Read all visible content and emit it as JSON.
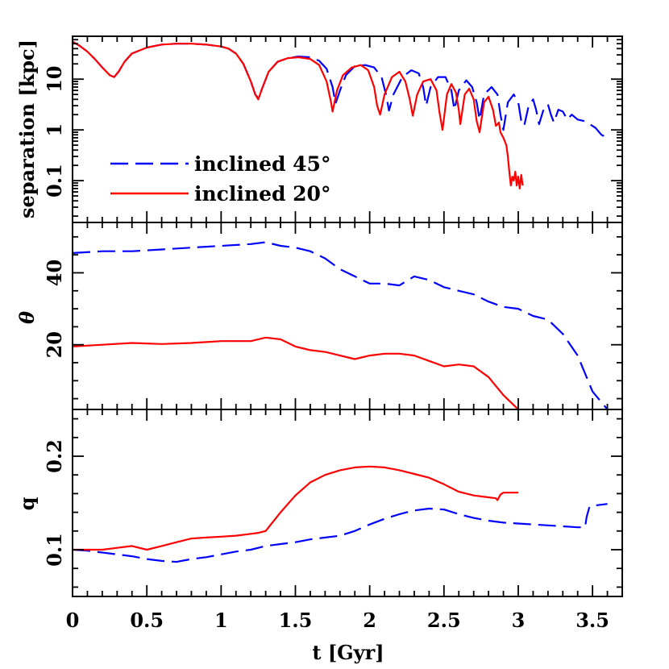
{
  "chart_data": [
    {
      "type": "line",
      "panel": "top",
      "ylabel": "separation [kpc]",
      "yscale": "log",
      "ylim": [
        0.015,
        70
      ],
      "xlim": [
        0,
        3.7
      ],
      "yticks": [
        0.1,
        1,
        10
      ],
      "ytick_labels": [
        "0.1",
        "1",
        "10"
      ],
      "legend_position": "lower-left",
      "series": [
        {
          "name": "inclined 45°",
          "color": "#0000ff",
          "dash": "dashed",
          "x": [
            0.0,
            0.05,
            0.1,
            0.15,
            0.2,
            0.25,
            0.28,
            0.31,
            0.35,
            0.4,
            0.5,
            0.6,
            0.7,
            0.8,
            0.9,
            1.0,
            1.05,
            1.1,
            1.15,
            1.2,
            1.23,
            1.25,
            1.28,
            1.32,
            1.38,
            1.45,
            1.52,
            1.6,
            1.66,
            1.71,
            1.75,
            1.77,
            1.8,
            1.84,
            1.9,
            1.97,
            2.03,
            2.08,
            2.11,
            2.13,
            2.16,
            2.22,
            2.28,
            2.33,
            2.36,
            2.38,
            2.41,
            2.46,
            2.51,
            2.55,
            2.57,
            2.6,
            2.65,
            2.69,
            2.72,
            2.74,
            2.77,
            2.82,
            2.86,
            2.88,
            2.9,
            2.93,
            2.97,
            3.0,
            3.02,
            3.04,
            3.07,
            3.1,
            3.12,
            3.14,
            3.17,
            3.2,
            3.22,
            3.24,
            3.27,
            3.3,
            3.33,
            3.36,
            3.4,
            3.44,
            3.48,
            3.52,
            3.56,
            3.6
          ],
          "y": [
            55,
            45,
            35,
            25,
            17,
            12,
            11,
            14,
            22,
            32,
            42,
            48,
            50,
            50,
            48,
            44,
            40,
            32,
            20,
            9,
            5,
            4.2,
            7,
            14,
            22,
            26,
            28,
            27,
            23,
            16,
            7,
            3.3,
            6,
            12,
            18,
            19,
            17,
            11,
            5,
            2.4,
            5,
            11,
            15,
            13,
            7,
            3,
            7,
            11,
            11,
            6,
            2.5,
            6,
            9.5,
            7,
            3.5,
            1.6,
            5,
            7,
            5,
            2,
            1,
            3.5,
            5,
            3.5,
            1.5,
            1.2,
            3,
            4,
            2.5,
            1.3,
            2.5,
            3.2,
            2,
            1.4,
            2.5,
            2.3,
            1.6,
            2,
            1.6,
            1.5,
            1.3,
            1.1,
            0.8,
            0.7
          ]
        },
        {
          "name": "inclined 20°",
          "color": "#ff0000",
          "dash": "solid",
          "x": [
            0.0,
            0.05,
            0.1,
            0.15,
            0.2,
            0.25,
            0.28,
            0.31,
            0.35,
            0.4,
            0.5,
            0.6,
            0.7,
            0.8,
            0.9,
            1.0,
            1.05,
            1.1,
            1.15,
            1.2,
            1.23,
            1.25,
            1.28,
            1.32,
            1.38,
            1.45,
            1.52,
            1.6,
            1.66,
            1.71,
            1.74,
            1.75,
            1.78,
            1.82,
            1.88,
            1.94,
            1.99,
            2.03,
            2.05,
            2.07,
            2.1,
            2.15,
            2.2,
            2.24,
            2.27,
            2.29,
            2.32,
            2.36,
            2.41,
            2.45,
            2.47,
            2.49,
            2.52,
            2.55,
            2.58,
            2.6,
            2.61,
            2.64,
            2.67,
            2.7,
            2.72,
            2.74,
            2.77,
            2.8,
            2.83,
            2.85,
            2.87,
            2.88,
            2.9,
            2.92,
            2.93,
            2.94,
            2.95,
            2.96,
            2.97,
            2.98,
            2.99,
            3.0,
            3.01,
            3.02,
            3.03
          ],
          "y": [
            55,
            45,
            35,
            25,
            17,
            12,
            11,
            14,
            22,
            32,
            42,
            48,
            50,
            50,
            48,
            44,
            40,
            32,
            20,
            9,
            5,
            4,
            7,
            14,
            22,
            26,
            27,
            25,
            19,
            9,
            3.5,
            2.3,
            6,
            12,
            17,
            19,
            15,
            7,
            3,
            2,
            5,
            11,
            14,
            9,
            4,
            1.9,
            5,
            9,
            10,
            6,
            2.2,
            1,
            5,
            8,
            5.5,
            2.5,
            1.3,
            5,
            6.5,
            4,
            1.5,
            0.9,
            3.5,
            4.5,
            2.5,
            1.2,
            1.4,
            0.9,
            0.7,
            0.5,
            0.3,
            0.15,
            0.08,
            0.12,
            0.1,
            0.15,
            0.08,
            0.12,
            0.07,
            0.13,
            0.08
          ]
        }
      ]
    },
    {
      "type": "line",
      "panel": "middle",
      "ylabel": "θ",
      "ylim": [
        2,
        54
      ],
      "xlim": [
        0,
        3.7
      ],
      "yticks": [
        20,
        40
      ],
      "ytick_labels": [
        "20",
        "40"
      ],
      "series": [
        {
          "color": "#0000ff",
          "dash": "dashed",
          "x": [
            0.0,
            0.2,
            0.4,
            0.6,
            0.8,
            1.0,
            1.2,
            1.3,
            1.4,
            1.5,
            1.6,
            1.7,
            1.8,
            1.9,
            2.0,
            2.1,
            2.2,
            2.3,
            2.4,
            2.5,
            2.6,
            2.7,
            2.8,
            2.9,
            3.0,
            3.1,
            3.2,
            3.3,
            3.4,
            3.5,
            3.6
          ],
          "y": [
            45.5,
            46,
            46,
            46.5,
            47,
            47.5,
            48,
            48.5,
            47.5,
            47,
            46,
            44,
            41,
            39,
            37,
            37,
            36.5,
            39,
            38,
            36,
            35,
            34,
            32,
            30.5,
            30,
            28,
            27,
            23,
            17,
            7,
            2
          ]
        },
        {
          "color": "#ff0000",
          "dash": "solid",
          "x": [
            0.0,
            0.2,
            0.4,
            0.6,
            0.8,
            1.0,
            1.2,
            1.3,
            1.4,
            1.5,
            1.6,
            1.7,
            1.8,
            1.9,
            2.0,
            2.1,
            2.2,
            2.3,
            2.4,
            2.5,
            2.6,
            2.7,
            2.8,
            2.9,
            3.0
          ],
          "y": [
            19.5,
            20,
            20.5,
            20.2,
            20.5,
            21,
            21,
            22,
            21.5,
            19.5,
            18.5,
            18,
            17,
            16,
            17,
            17.5,
            17.5,
            17,
            15.5,
            14,
            14.5,
            14,
            11,
            6,
            2
          ]
        }
      ]
    },
    {
      "type": "line",
      "panel": "bottom",
      "ylabel": "q",
      "xlabel": "t [Gyr]",
      "ylim": [
        0.05,
        0.25
      ],
      "xlim": [
        0,
        3.7
      ],
      "yticks": [
        0.1,
        0.2
      ],
      "ytick_labels": [
        "0.1",
        "0.2"
      ],
      "xticks": [
        0,
        0.5,
        1,
        1.5,
        2,
        2.5,
        3,
        3.5
      ],
      "xtick_labels": [
        "0",
        "0.5",
        "1",
        "1.5",
        "2",
        "2.5",
        "3",
        "3.5"
      ],
      "series": [
        {
          "color": "#0000ff",
          "dash": "dashed",
          "x": [
            0.0,
            0.1,
            0.2,
            0.3,
            0.4,
            0.5,
            0.6,
            0.7,
            0.8,
            0.9,
            1.0,
            1.1,
            1.2,
            1.3,
            1.4,
            1.5,
            1.6,
            1.7,
            1.8,
            1.9,
            2.0,
            2.1,
            2.2,
            2.3,
            2.4,
            2.5,
            2.6,
            2.7,
            2.8,
            2.9,
            3.0,
            3.1,
            3.2,
            3.3,
            3.4,
            3.45,
            3.46,
            3.48,
            3.5,
            3.6
          ],
          "y": [
            0.1,
            0.099,
            0.097,
            0.095,
            0.093,
            0.09,
            0.088,
            0.087,
            0.09,
            0.092,
            0.095,
            0.098,
            0.1,
            0.104,
            0.106,
            0.108,
            0.111,
            0.113,
            0.115,
            0.12,
            0.127,
            0.133,
            0.138,
            0.142,
            0.144,
            0.143,
            0.138,
            0.134,
            0.131,
            0.129,
            0.128,
            0.127,
            0.126,
            0.125,
            0.124,
            0.124,
            0.135,
            0.146,
            0.147,
            0.149
          ]
        },
        {
          "color": "#ff0000",
          "dash": "solid",
          "x": [
            0.0,
            0.1,
            0.2,
            0.3,
            0.4,
            0.5,
            0.6,
            0.7,
            0.8,
            0.9,
            1.0,
            1.1,
            1.2,
            1.25,
            1.3,
            1.4,
            1.5,
            1.6,
            1.7,
            1.8,
            1.9,
            2.0,
            2.1,
            2.2,
            2.3,
            2.4,
            2.5,
            2.6,
            2.7,
            2.8,
            2.85,
            2.86,
            2.88,
            2.9,
            3.0
          ],
          "y": [
            0.1,
            0.1,
            0.1,
            0.102,
            0.104,
            0.1,
            0.104,
            0.108,
            0.112,
            0.113,
            0.114,
            0.115,
            0.117,
            0.118,
            0.12,
            0.14,
            0.158,
            0.172,
            0.18,
            0.185,
            0.188,
            0.189,
            0.188,
            0.185,
            0.181,
            0.177,
            0.17,
            0.162,
            0.158,
            0.156,
            0.155,
            0.153,
            0.159,
            0.161,
            0.161
          ]
        }
      ]
    }
  ],
  "legend": {
    "entries": [
      {
        "label": "inclined 45°",
        "color": "#0000ff",
        "dash": "dashed"
      },
      {
        "label": "inclined 20°",
        "color": "#ff0000",
        "dash": "solid"
      }
    ]
  }
}
